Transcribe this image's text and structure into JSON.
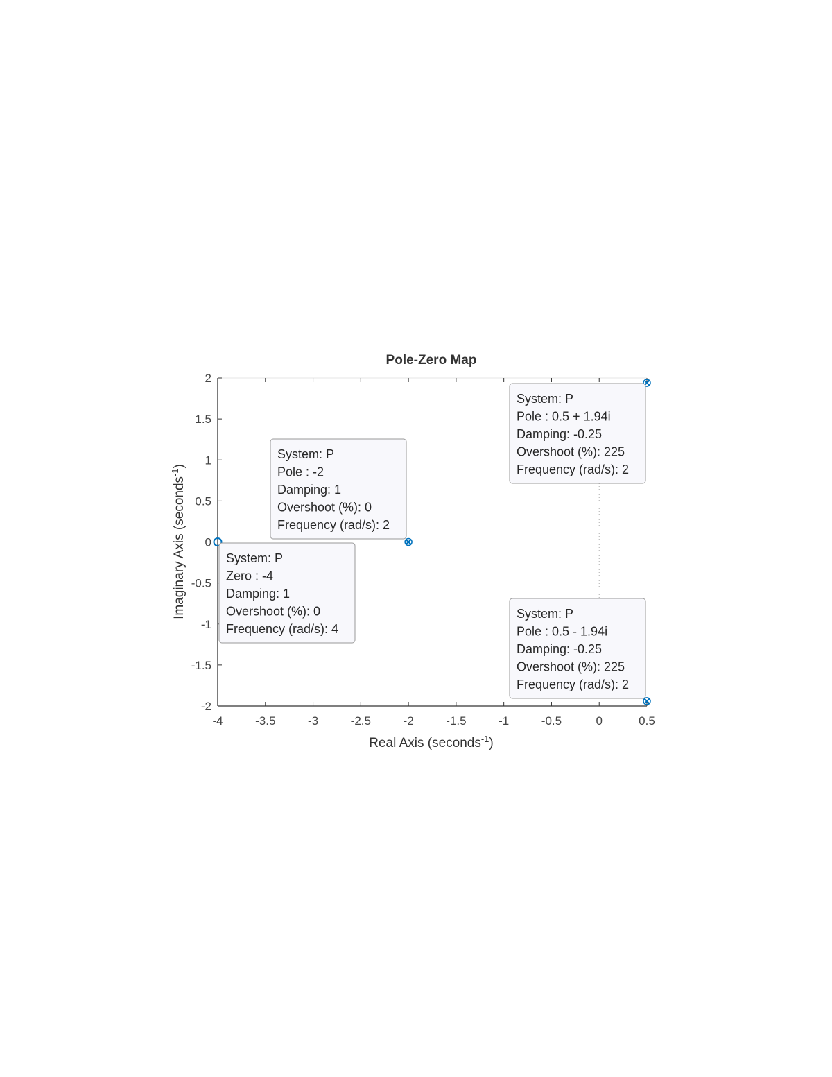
{
  "chart_data": {
    "type": "pzmap",
    "title": "Pole-Zero Map",
    "xlabel": [
      "Real Axis (seconds",
      "-1",
      ")"
    ],
    "ylabel": [
      "Imaginary Axis (seconds",
      "-1",
      ")"
    ],
    "zeros": {
      "real": [
        -4
      ],
      "imag": [
        0
      ]
    },
    "poles": {
      "real": [
        -2,
        0.5,
        0.5
      ],
      "imag": [
        0,
        1.94,
        -1.94
      ]
    },
    "color": "#0072bd",
    "xlim": [
      -4,
      0.5
    ],
    "ylim": [
      -2,
      2
    ],
    "xticks": [
      -4,
      -3.5,
      -3,
      -2.5,
      -2,
      -1.5,
      -1,
      -0.5,
      0,
      0.5
    ],
    "yticks": [
      -2,
      -1.5,
      -1,
      -0.5,
      0,
      0.5,
      1,
      1.5,
      2
    ],
    "datatips": [
      {
        "lines": [
          "System: P",
          "Zero : -4",
          "Damping: 1",
          "Overshoot (%): 0",
          "Frequency (rad/s): 4"
        ]
      },
      {
        "lines": [
          "System: P",
          "Pole : -2",
          "Damping: 1",
          "Overshoot (%): 0",
          "Frequency (rad/s): 2"
        ]
      },
      {
        "lines": [
          "System: P",
          "Pole : 0.5 + 1.94i",
          "Damping: -0.25",
          "Overshoot (%): 225",
          "Frequency (rad/s): 2"
        ]
      },
      {
        "lines": [
          "System: P",
          "Pole : 0.5 - 1.94i",
          "Damping: -0.25",
          "Overshoot (%): 225",
          "Frequency (rad/s): 2"
        ]
      }
    ]
  }
}
